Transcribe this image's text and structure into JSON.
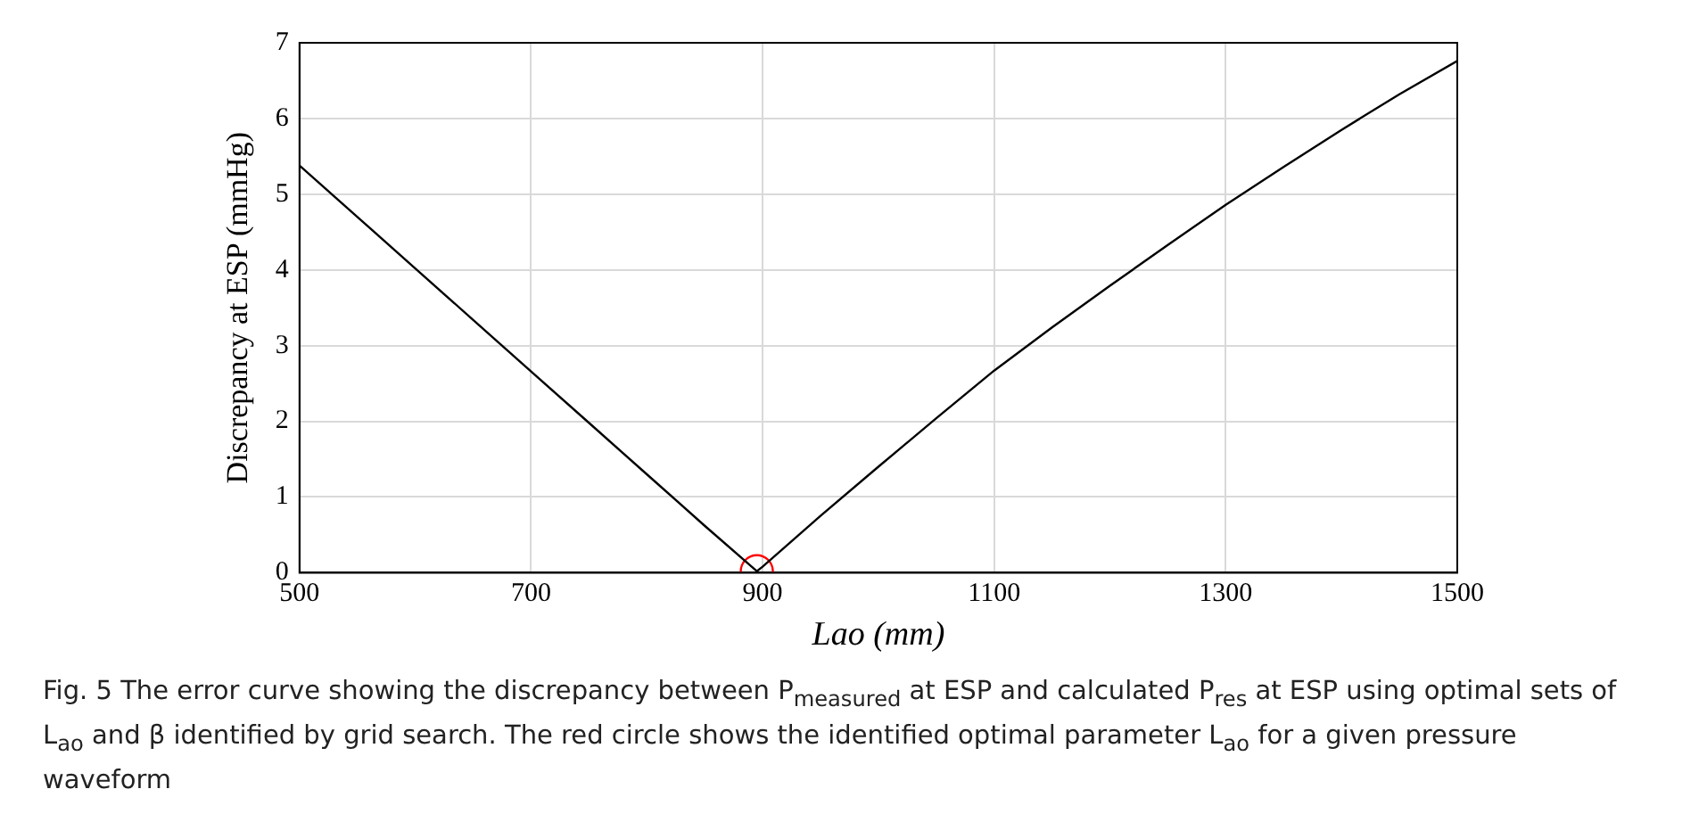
{
  "chart_data": {
    "type": "line",
    "xlabel": "Lao (mm)",
    "ylabel": "Discrepancy at ESP (mmHg)",
    "xlim": [
      500,
      1500
    ],
    "xticks": [
      500,
      700,
      900,
      1100,
      1300,
      1500
    ],
    "ylim": [
      0,
      7
    ],
    "yticks": [
      0,
      1,
      2,
      3,
      4,
      5,
      6,
      7
    ],
    "grid": true,
    "legend": false,
    "marker": "none",
    "line_style": "solid",
    "series": [
      {
        "color": "#000000",
        "x": [
          500,
          550,
          600,
          650,
          700,
          750,
          800,
          850,
          895,
          900,
          950,
          1000,
          1050,
          1100,
          1150,
          1200,
          1250,
          1300,
          1350,
          1400,
          1450,
          1500
        ],
        "values": [
          5.38,
          4.7,
          4.02,
          3.34,
          2.66,
          1.98,
          1.3,
          0.62,
          0.02,
          0.08,
          0.75,
          1.4,
          2.04,
          2.67,
          3.24,
          3.79,
          4.33,
          4.86,
          5.36,
          5.85,
          6.32,
          6.76
        ]
      },
      {
        "type": "scatter",
        "marker": "circle",
        "color": "#ff0000",
        "x": [
          895
        ],
        "values": [
          0.02
        ]
      }
    ],
    "annotations": [
      "Fig. 5 The error curve showing the discrepancy between P$_{measured}$ at ESP and calculated P$_{res}$ at ESP using optimal sets of L$_{ao}$ and β identified by grid search. The red circle shows the identified optimal parameter L$_{ao}$ for a given pressure waveform"
    ]
  }
}
